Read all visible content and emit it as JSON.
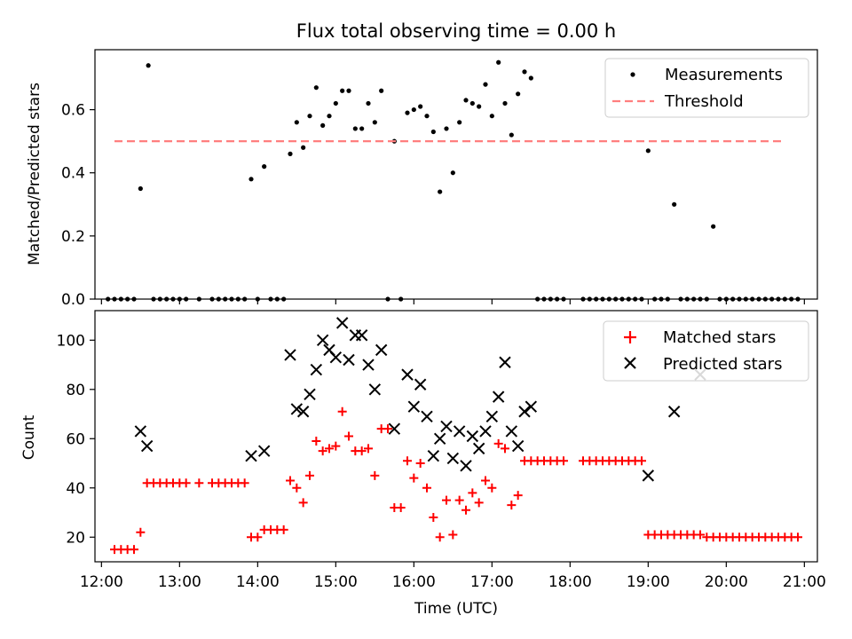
{
  "chart_data": [
    {
      "type": "scatter",
      "title": "Flux total observing time = 0.00 h",
      "xlabel": "",
      "ylabel": "Matched/Predicted stars",
      "xlim": [
        "11:55",
        "21:10"
      ],
      "ylim": [
        0,
        0.79
      ],
      "x_ticks": [
        "12:00",
        "13:00",
        "14:00",
        "15:00",
        "16:00",
        "17:00",
        "18:00",
        "19:00",
        "20:00",
        "21:00"
      ],
      "x_tick_labels_visible": false,
      "y_ticks": [
        0.0,
        0.2,
        0.4,
        0.6
      ],
      "y_tick_labels": [
        "0.0",
        "0.2",
        "0.4",
        "0.6"
      ],
      "legend": {
        "position": "upper right",
        "entries": [
          "Measurements",
          "Threshold"
        ]
      },
      "grid": false,
      "series": [
        {
          "name": "Measurements",
          "marker": "dot",
          "color": "#000000",
          "points": [
            [
              "12:05",
              0
            ],
            [
              "12:10",
              0
            ],
            [
              "12:15",
              0
            ],
            [
              "12:20",
              0
            ],
            [
              "12:25",
              0
            ],
            [
              "12:30",
              0.35
            ],
            [
              "12:36",
              0.74
            ],
            [
              "12:40",
              0
            ],
            [
              "12:45",
              0
            ],
            [
              "12:50",
              0
            ],
            [
              "12:55",
              0
            ],
            [
              "13:00",
              0
            ],
            [
              "13:05",
              0
            ],
            [
              "13:15",
              0
            ],
            [
              "13:25",
              0
            ],
            [
              "13:30",
              0
            ],
            [
              "13:35",
              0
            ],
            [
              "13:40",
              0
            ],
            [
              "13:45",
              0
            ],
            [
              "13:50",
              0
            ],
            [
              "13:55",
              0.38
            ],
            [
              "14:00",
              0
            ],
            [
              "14:05",
              0.42
            ],
            [
              "14:10",
              0
            ],
            [
              "14:15",
              0
            ],
            [
              "14:20",
              0
            ],
            [
              "14:25",
              0.46
            ],
            [
              "14:30",
              0.56
            ],
            [
              "14:35",
              0.48
            ],
            [
              "14:40",
              0.58
            ],
            [
              "14:45",
              0.67
            ],
            [
              "14:50",
              0.55
            ],
            [
              "14:55",
              0.58
            ],
            [
              "15:00",
              0.62
            ],
            [
              "15:05",
              0.66
            ],
            [
              "15:10",
              0.66
            ],
            [
              "15:15",
              0.54
            ],
            [
              "15:20",
              0.54
            ],
            [
              "15:25",
              0.62
            ],
            [
              "15:30",
              0.56
            ],
            [
              "15:35",
              0.66
            ],
            [
              "15:40",
              0
            ],
            [
              "15:45",
              0.5
            ],
            [
              "15:50",
              0
            ],
            [
              "15:55",
              0.59
            ],
            [
              "16:00",
              0.6
            ],
            [
              "16:05",
              0.61
            ],
            [
              "16:10",
              0.58
            ],
            [
              "16:15",
              0.53
            ],
            [
              "16:20",
              0.34
            ],
            [
              "16:25",
              0.54
            ],
            [
              "16:30",
              0.4
            ],
            [
              "16:35",
              0.56
            ],
            [
              "16:40",
              0.63
            ],
            [
              "16:45",
              0.62
            ],
            [
              "16:50",
              0.61
            ],
            [
              "16:55",
              0.68
            ],
            [
              "17:00",
              0.58
            ],
            [
              "17:05",
              0.75
            ],
            [
              "17:10",
              0.62
            ],
            [
              "17:15",
              0.52
            ],
            [
              "17:20",
              0.65
            ],
            [
              "17:25",
              0.72
            ],
            [
              "17:30",
              0.7
            ],
            [
              "17:35",
              0
            ],
            [
              "17:40",
              0
            ],
            [
              "17:45",
              0
            ],
            [
              "17:50",
              0
            ],
            [
              "17:55",
              0
            ],
            [
              "18:10",
              0
            ],
            [
              "18:15",
              0
            ],
            [
              "18:20",
              0
            ],
            [
              "18:25",
              0
            ],
            [
              "18:30",
              0
            ],
            [
              "18:35",
              0
            ],
            [
              "18:40",
              0
            ],
            [
              "18:45",
              0
            ],
            [
              "18:50",
              0
            ],
            [
              "18:55",
              0
            ],
            [
              "19:00",
              0.47
            ],
            [
              "19:05",
              0
            ],
            [
              "19:10",
              0
            ],
            [
              "19:15",
              0
            ],
            [
              "19:20",
              0.3
            ],
            [
              "19:25",
              0
            ],
            [
              "19:30",
              0
            ],
            [
              "19:35",
              0
            ],
            [
              "19:40",
              0
            ],
            [
              "19:45",
              0
            ],
            [
              "19:50",
              0.23
            ],
            [
              "19:55",
              0
            ],
            [
              "20:00",
              0
            ],
            [
              "20:05",
              0
            ],
            [
              "20:10",
              0
            ],
            [
              "20:15",
              0
            ],
            [
              "20:20",
              0
            ],
            [
              "20:25",
              0
            ],
            [
              "20:30",
              0
            ],
            [
              "20:35",
              0
            ],
            [
              "20:40",
              0
            ],
            [
              "20:45",
              0
            ],
            [
              "20:50",
              0
            ],
            [
              "20:55",
              0
            ]
          ]
        },
        {
          "name": "Threshold",
          "style": "dashed",
          "color": "#ff7f7f",
          "points": [
            [
              "12:10",
              0.5
            ],
            [
              "20:45",
              0.5
            ]
          ]
        }
      ]
    },
    {
      "type": "scatter",
      "title": "",
      "xlabel": "Time (UTC)",
      "ylabel": "Count",
      "xlim": [
        "11:55",
        "21:10"
      ],
      "ylim": [
        10,
        112
      ],
      "x_ticks": [
        "12:00",
        "13:00",
        "14:00",
        "15:00",
        "16:00",
        "17:00",
        "18:00",
        "19:00",
        "20:00",
        "21:00"
      ],
      "x_tick_labels": [
        "12:00",
        "13:00",
        "14:00",
        "15:00",
        "16:00",
        "17:00",
        "18:00",
        "19:00",
        "20:00",
        "21:00"
      ],
      "y_ticks": [
        20,
        40,
        60,
        80,
        100
      ],
      "y_tick_labels": [
        "20",
        "40",
        "60",
        "80",
        "100"
      ],
      "legend": {
        "position": "upper right",
        "entries": [
          "Matched stars",
          "Predicted stars"
        ]
      },
      "grid": false,
      "series": [
        {
          "name": "Matched stars",
          "marker": "plus",
          "color": "#ff0000",
          "points": [
            [
              "12:10",
              15
            ],
            [
              "12:15",
              15
            ],
            [
              "12:20",
              15
            ],
            [
              "12:25",
              15
            ],
            [
              "12:30",
              22
            ],
            [
              "12:35",
              42
            ],
            [
              "12:40",
              42
            ],
            [
              "12:45",
              42
            ],
            [
              "12:50",
              42
            ],
            [
              "12:55",
              42
            ],
            [
              "13:00",
              42
            ],
            [
              "13:05",
              42
            ],
            [
              "13:15",
              42
            ],
            [
              "13:25",
              42
            ],
            [
              "13:30",
              42
            ],
            [
              "13:35",
              42
            ],
            [
              "13:40",
              42
            ],
            [
              "13:45",
              42
            ],
            [
              "13:50",
              42
            ],
            [
              "13:55",
              20
            ],
            [
              "14:00",
              20
            ],
            [
              "14:05",
              23
            ],
            [
              "14:10",
              23
            ],
            [
              "14:15",
              23
            ],
            [
              "14:20",
              23
            ],
            [
              "14:25",
              43
            ],
            [
              "14:30",
              40
            ],
            [
              "14:35",
              34
            ],
            [
              "14:40",
              45
            ],
            [
              "14:45",
              59
            ],
            [
              "14:50",
              55
            ],
            [
              "14:55",
              56
            ],
            [
              "15:00",
              57
            ],
            [
              "15:05",
              71
            ],
            [
              "15:10",
              61
            ],
            [
              "15:15",
              55
            ],
            [
              "15:20",
              55
            ],
            [
              "15:25",
              56
            ],
            [
              "15:30",
              45
            ],
            [
              "15:35",
              64
            ],
            [
              "15:40",
              64
            ],
            [
              "15:45",
              32
            ],
            [
              "15:50",
              32
            ],
            [
              "15:55",
              51
            ],
            [
              "16:00",
              44
            ],
            [
              "16:05",
              50
            ],
            [
              "16:10",
              40
            ],
            [
              "16:15",
              28
            ],
            [
              "16:20",
              20
            ],
            [
              "16:25",
              35
            ],
            [
              "16:30",
              21
            ],
            [
              "16:35",
              35
            ],
            [
              "16:40",
              31
            ],
            [
              "16:45",
              38
            ],
            [
              "16:50",
              34
            ],
            [
              "16:55",
              43
            ],
            [
              "17:00",
              40
            ],
            [
              "17:05",
              58
            ],
            [
              "17:10",
              56
            ],
            [
              "17:15",
              33
            ],
            [
              "17:20",
              37
            ],
            [
              "17:25",
              51
            ],
            [
              "17:30",
              51
            ],
            [
              "17:35",
              51
            ],
            [
              "17:40",
              51
            ],
            [
              "17:45",
              51
            ],
            [
              "17:50",
              51
            ],
            [
              "17:55",
              51
            ],
            [
              "18:10",
              51
            ],
            [
              "18:15",
              51
            ],
            [
              "18:20",
              51
            ],
            [
              "18:25",
              51
            ],
            [
              "18:30",
              51
            ],
            [
              "18:35",
              51
            ],
            [
              "18:40",
              51
            ],
            [
              "18:45",
              51
            ],
            [
              "18:50",
              51
            ],
            [
              "18:55",
              51
            ],
            [
              "19:00",
              21
            ],
            [
              "19:05",
              21
            ],
            [
              "19:10",
              21
            ],
            [
              "19:15",
              21
            ],
            [
              "19:20",
              21
            ],
            [
              "19:25",
              21
            ],
            [
              "19:30",
              21
            ],
            [
              "19:35",
              21
            ],
            [
              "19:40",
              21
            ],
            [
              "19:45",
              20
            ],
            [
              "19:50",
              20
            ],
            [
              "19:55",
              20
            ],
            [
              "20:00",
              20
            ],
            [
              "20:05",
              20
            ],
            [
              "20:10",
              20
            ],
            [
              "20:15",
              20
            ],
            [
              "20:20",
              20
            ],
            [
              "20:25",
              20
            ],
            [
              "20:30",
              20
            ],
            [
              "20:35",
              20
            ],
            [
              "20:40",
              20
            ],
            [
              "20:45",
              20
            ],
            [
              "20:50",
              20
            ],
            [
              "20:55",
              20
            ]
          ]
        },
        {
          "name": "Predicted stars",
          "marker": "x",
          "color": "#000000",
          "points": [
            [
              "12:30",
              63
            ],
            [
              "12:35",
              57
            ],
            [
              "13:55",
              53
            ],
            [
              "14:05",
              55
            ],
            [
              "14:25",
              94
            ],
            [
              "14:30",
              72
            ],
            [
              "14:35",
              71
            ],
            [
              "14:40",
              78
            ],
            [
              "14:45",
              88
            ],
            [
              "14:50",
              100
            ],
            [
              "14:55",
              96
            ],
            [
              "15:00",
              93
            ],
            [
              "15:05",
              107
            ],
            [
              "15:10",
              92
            ],
            [
              "15:15",
              102
            ],
            [
              "15:20",
              102
            ],
            [
              "15:25",
              90
            ],
            [
              "15:30",
              80
            ],
            [
              "15:35",
              96
            ],
            [
              "15:45",
              64
            ],
            [
              "15:55",
              86
            ],
            [
              "16:00",
              73
            ],
            [
              "16:05",
              82
            ],
            [
              "16:10",
              69
            ],
            [
              "16:15",
              53
            ],
            [
              "16:20",
              60
            ],
            [
              "16:25",
              65
            ],
            [
              "16:30",
              52
            ],
            [
              "16:35",
              63
            ],
            [
              "16:40",
              49
            ],
            [
              "16:45",
              61
            ],
            [
              "16:50",
              56
            ],
            [
              "16:55",
              63
            ],
            [
              "17:00",
              69
            ],
            [
              "17:05",
              77
            ],
            [
              "17:10",
              91
            ],
            [
              "17:15",
              63
            ],
            [
              "17:20",
              57
            ],
            [
              "17:25",
              71
            ],
            [
              "17:30",
              73
            ],
            [
              "19:00",
              45
            ],
            [
              "19:20",
              71
            ],
            [
              "19:40",
              86
            ]
          ]
        }
      ]
    }
  ]
}
